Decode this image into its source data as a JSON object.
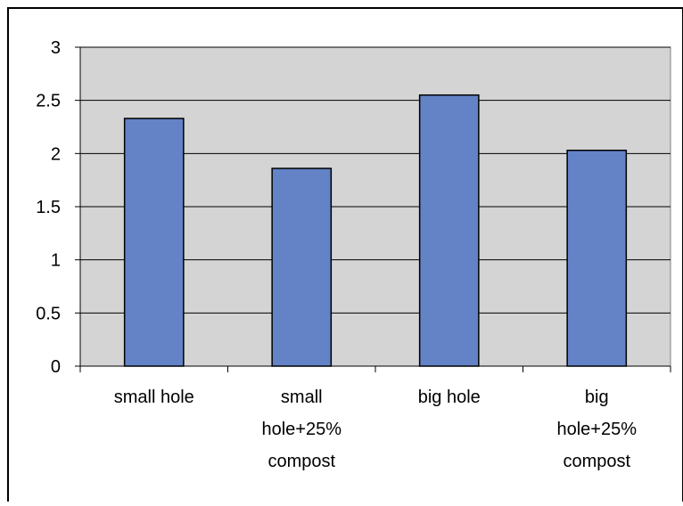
{
  "chart_data": {
    "type": "bar",
    "categories": [
      [
        "small hole"
      ],
      [
        "small",
        "hole+25%",
        "compost"
      ],
      [
        "big hole"
      ],
      [
        "big",
        "hole+25%",
        "compost"
      ]
    ],
    "values": [
      2.33,
      1.86,
      2.55,
      2.03
    ],
    "title": "",
    "xlabel": "",
    "ylabel": "",
    "ylim": [
      0,
      3
    ],
    "yticks": [
      "0",
      "0.5",
      "1",
      "1.5",
      "2",
      "2.5",
      "3"
    ],
    "grid": true,
    "legend": "none",
    "colors": {
      "bar_fill": "#6383c6",
      "bar_stroke": "#000000",
      "plot_background": "#d4d4d4",
      "gridline": "#000000"
    }
  }
}
